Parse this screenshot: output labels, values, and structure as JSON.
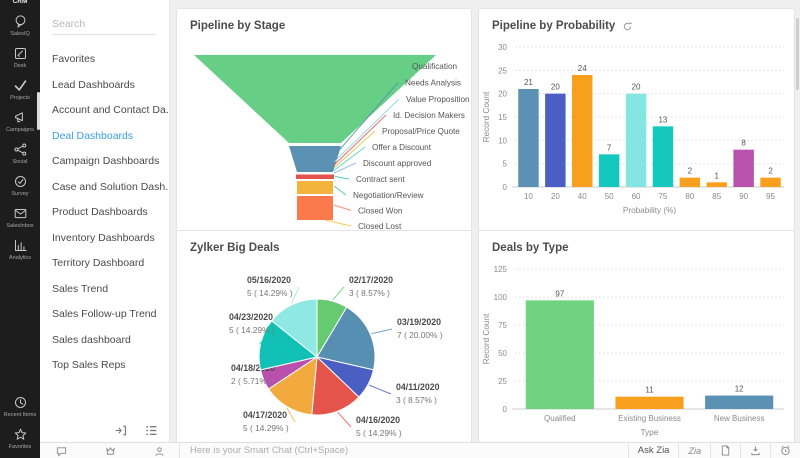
{
  "rail": {
    "items": [
      {
        "id": "crm",
        "label": "CRM"
      },
      {
        "id": "salesiq",
        "label": "SalesIQ"
      },
      {
        "id": "desk",
        "label": "Desk"
      },
      {
        "id": "projects",
        "label": "Projects"
      },
      {
        "id": "campaigns",
        "label": "Campaigns"
      },
      {
        "id": "social",
        "label": "Social"
      },
      {
        "id": "survey",
        "label": "Survey"
      },
      {
        "id": "salesinbox",
        "label": "SalesInbox"
      },
      {
        "id": "analytics",
        "label": "Analytics"
      }
    ],
    "bottom_items": [
      {
        "id": "recent",
        "label": "Recent Items"
      },
      {
        "id": "favorites",
        "label": "Favorites"
      }
    ]
  },
  "sidebar": {
    "search_placeholder": "Search",
    "items": [
      "Favorites",
      "Lead Dashboards",
      "Account and Contact Da...",
      "Deal Dashboards",
      "Campaign Dashboards",
      "Case and Solution Dash...",
      "Product Dashboards",
      "Inventory Dashboards",
      "Territory Dashboard",
      "Sales Trend",
      "Sales Follow-up Trend",
      "Sales dashboard",
      "Top Sales Reps"
    ],
    "selected_item": "Deal Dashboards"
  },
  "chart_data": [
    {
      "type": "funnel",
      "title": "Pipeline by Stage",
      "stages": [
        {
          "label": "Qualification",
          "color": "#66cf85"
        },
        {
          "label": "Needs Analysis",
          "color": "#5b91b2"
        },
        {
          "label": "Value Proposition",
          "color": "#7fd4e8"
        },
        {
          "label": "Id. Decision Makers",
          "color": "#e2574f"
        },
        {
          "label": "Proposal/Price Quote",
          "color": "#f0c040"
        },
        {
          "label": "Offer a Discount",
          "color": "#45d0c6"
        },
        {
          "label": "Discount approved",
          "color": "#8ab8e8"
        },
        {
          "label": "Contract sent",
          "color": "#2bbfa8"
        },
        {
          "label": "Negotiation/Review",
          "color": "#37c3a0"
        },
        {
          "label": "Closed Won",
          "color": "#fb7a4d"
        },
        {
          "label": "Closed Lost",
          "color": "#f0c53d"
        }
      ]
    },
    {
      "type": "bar",
      "title": "Pipeline by Probability",
      "categories": [
        "10",
        "20",
        "40",
        "50",
        "60",
        "75",
        "80",
        "85",
        "90",
        "95"
      ],
      "values": [
        21,
        20,
        24,
        7,
        20,
        13,
        2,
        1,
        8,
        2
      ],
      "colors": [
        "#5b91b2",
        "#4a5ec4",
        "#f8a01e",
        "#14c8bd",
        "#83e6e2",
        "#14c8bd",
        "#f8a01e",
        "#f8a01e",
        "#b952ad",
        "#f8a01e"
      ],
      "xlabel": "Probability (%)",
      "ylabel": "Record Count",
      "ylim": [
        0,
        30
      ],
      "ytick_step": 5,
      "grid": true,
      "has_refresh": true
    },
    {
      "type": "pie",
      "title": "Zylker Big Deals",
      "slices": [
        {
          "label": "02/17/2020",
          "value": 3,
          "pct": "8.57",
          "color": "#66cb70"
        },
        {
          "label": "03/19/2020",
          "value": 7,
          "pct": "20.00",
          "color": "#578fb3"
        },
        {
          "label": "04/11/2020",
          "value": 3,
          "pct": "8.57",
          "color": "#4a5ec4"
        },
        {
          "label": "04/16/2020",
          "value": 5,
          "pct": "14.29",
          "color": "#e4544b"
        },
        {
          "label": "04/17/2020",
          "value": 5,
          "pct": "14.29",
          "color": "#f2a93d"
        },
        {
          "label": "04/18/2020",
          "value": 2,
          "pct": "5.71",
          "color": "#ba4fae"
        },
        {
          "label": "04/23/2020",
          "value": 5,
          "pct": "14.29",
          "color": "#12c1b5"
        },
        {
          "label": "05/16/2020",
          "value": 5,
          "pct": "14.29",
          "color": "#8fe8e3"
        }
      ]
    },
    {
      "type": "bar",
      "title": "Deals by Type",
      "categories": [
        "Qualified",
        "Existing Business",
        "New Business"
      ],
      "values": [
        97,
        11,
        12
      ],
      "colors": [
        "#6fd382",
        "#f8a01e",
        "#5b91b2"
      ],
      "xlabel": "Type",
      "ylabel": "Record Count",
      "ylim": [
        0,
        125
      ],
      "ytick_step": 25,
      "grid": true,
      "has_refresh": false
    }
  ],
  "bottom_bar": {
    "chat_placeholder": "Here is your Smart Chat (Ctrl+Space)",
    "ask_zia_label": "Ask Zia",
    "zia_label": "Zia"
  },
  "colors": {
    "accent": "#3b9fe0",
    "rail_bg": "#1d1d1d",
    "main_bg": "#efefef",
    "card_border": "#e3e3e3"
  }
}
